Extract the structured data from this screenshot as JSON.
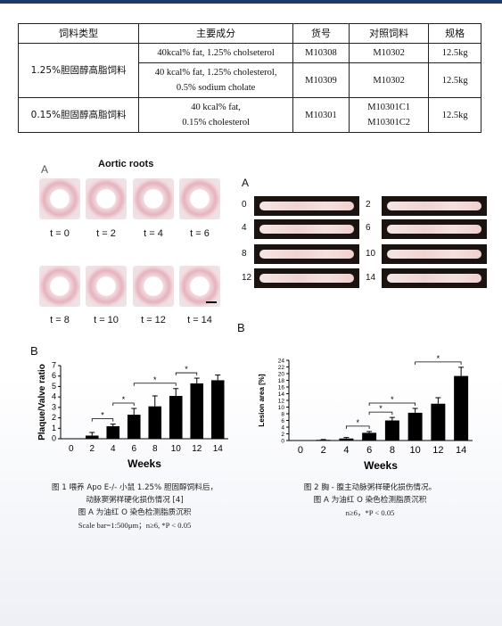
{
  "table": {
    "headers": [
      "饲料类型",
      "主要成分",
      "货号",
      "对照饲料",
      "规格"
    ],
    "group1": {
      "type": "1.25%胆固醇高脂饲料",
      "rows": [
        {
          "comp": [
            "40kcal% fat, 1.25% cholseterol"
          ],
          "code": "M10308",
          "ctrl": [
            "M10302"
          ],
          "spec": "12.5kg"
        },
        {
          "comp": [
            "40 kcal% fat, 1.25% cholesterol,",
            "0.5% sodium cholate"
          ],
          "code": "M10309",
          "ctrl": [
            "M10302"
          ],
          "spec": "12.5kg"
        }
      ]
    },
    "group2": {
      "type": "0.15%胆固醇高脂饲料",
      "rows": [
        {
          "comp": [
            "40 kcal% fat,",
            "0.15% cholesterol"
          ],
          "code": "M10301",
          "ctrl": [
            "M10301C1",
            "M10301C2"
          ],
          "spec": "12.5kg"
        }
      ]
    }
  },
  "fig1": {
    "panel_a_letter": "A",
    "panel_a_title": "Aortic roots",
    "timepoints": [
      "t = 0",
      "t = 2",
      "t = 4",
      "t = 6",
      "t = 8",
      "t = 10",
      "t = 12",
      "t = 14"
    ],
    "panel_b_letter": "B",
    "caption": [
      "图 1 喂养 Apo E-/- 小鼠 1.25% 胆固醇饲料后，",
      "动脉窦粥样硬化损伤情况 [4]",
      "图 A 为油红 O 染色检测脂质沉积",
      "Scale bar=1:500μm；n≥6, *P < 0.05"
    ]
  },
  "fig2": {
    "panel_a_letter": "A",
    "aorta_labels": [
      "0",
      "2",
      "4",
      "6",
      "8",
      "10",
      "12",
      "14"
    ],
    "panel_b_letter": "B",
    "caption": [
      "图 2 胸 - 腹主动脉粥样硬化损伤情况。",
      "图 A 为油红 O 染色检测脂质沉积",
      "n≥6，*P < 0.05"
    ]
  },
  "chart_data": [
    {
      "type": "bar",
      "categories": [
        "0",
        "2",
        "4",
        "6",
        "8",
        "10",
        "12",
        "14"
      ],
      "values": [
        0,
        0.3,
        1.2,
        2.3,
        3.1,
        4.1,
        5.3,
        5.6
      ],
      "errors": [
        0,
        0.3,
        0.2,
        0.6,
        1.0,
        0.7,
        0.5,
        0.5
      ],
      "xlabel": "Weeks",
      "ylabel": "Plaque/Valve ratio",
      "ylim": [
        0,
        7
      ],
      "yticks": [
        "0",
        "1",
        "2",
        "3",
        "4",
        "5",
        "6",
        "7"
      ],
      "significance": [
        {
          "from": "2",
          "to": "4",
          "label": "*"
        },
        {
          "from": "4",
          "to": "6",
          "label": "*"
        },
        {
          "from": "6",
          "to": "10",
          "label": "*"
        },
        {
          "from": "10",
          "to": "12",
          "label": "*"
        }
      ]
    },
    {
      "type": "bar",
      "categories": [
        "0",
        "2",
        "4",
        "6",
        "8",
        "10",
        "12",
        "14"
      ],
      "values": [
        0,
        0.2,
        0.6,
        2.3,
        6.0,
        8.3,
        11.0,
        19.3
      ],
      "errors": [
        0,
        0.1,
        0.3,
        0.4,
        0.9,
        1.3,
        1.8,
        2.6
      ],
      "xlabel": "Weeks",
      "ylabel": "Lesion area [%]",
      "ylim": [
        0,
        24
      ],
      "yticks": [
        "0",
        "2",
        "4",
        "6",
        "8",
        "10",
        "12",
        "14",
        "16",
        "18",
        "20",
        "22",
        "24"
      ],
      "significance": [
        {
          "from": "4",
          "to": "6",
          "label": "*"
        },
        {
          "from": "6",
          "to": "8",
          "label": "*"
        },
        {
          "from": "6",
          "to": "10",
          "label": "*"
        },
        {
          "from": "10",
          "to": "14",
          "label": "*"
        }
      ]
    }
  ]
}
